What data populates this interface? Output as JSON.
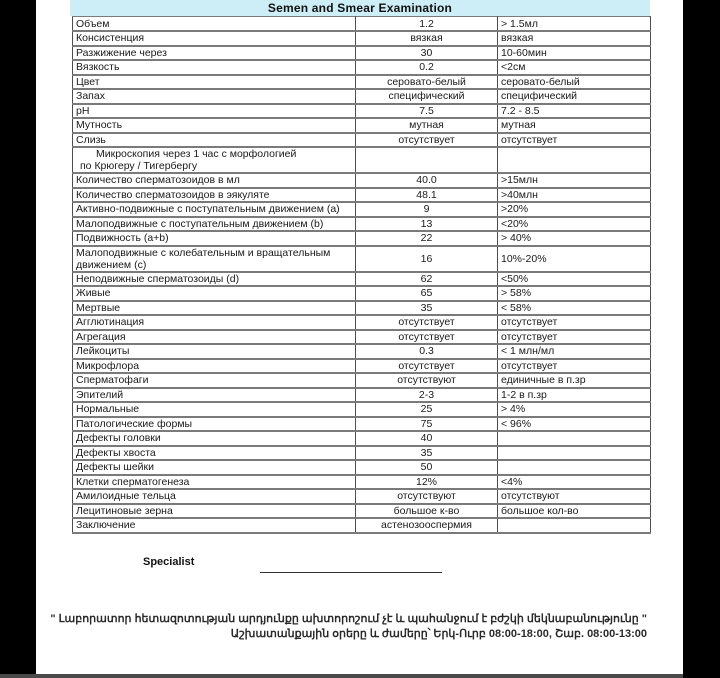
{
  "page": {
    "title": "Semen and Smear Examination",
    "specialist_label": "Specialist",
    "footer": {
      "line1": "\" Լաբորատոր հետազոտության արդյունքը ախտորոշում չէ և պահանջում է բժշկի մեկնաբանությունը \"",
      "line2": "Աշխատանքային օրերը և ժամերը՝ Երկ-Ուրբ 08:00-18:00, Շաբ. 08:00-13:00"
    },
    "colors": {
      "header_bg": "#cdeef6",
      "row_line": "#7a7a7a",
      "column_line": "#4d4d4d",
      "text": "#1a1a1a",
      "bottom_bar": "#4a4a4a"
    }
  },
  "table": {
    "rows": [
      {
        "name": "Объем",
        "value": "1.2",
        "ref": "> 1.5мл"
      },
      {
        "name": "Консистенция",
        "value": "вязкая",
        "ref": "вязкая"
      },
      {
        "name": "Разжижение через",
        "value": "30",
        "ref": "10-60мин"
      },
      {
        "name": "Вязкость",
        "value": "0.2",
        "ref": "<2см"
      },
      {
        "name": "Цвет",
        "value": "серовато-белый",
        "ref": "серовато-белый"
      },
      {
        "name": "Запах",
        "value": "специфический",
        "ref": "специфический"
      },
      {
        "name": "pH",
        "value": "7.5",
        "ref": "7.2 - 8.5"
      },
      {
        "name": "Мутность",
        "value": "мутная",
        "ref": "мутная"
      },
      {
        "name": "Слизь",
        "value": "отсутствует",
        "ref": "отсутствует"
      },
      {
        "name": [
          "Микроскопия через 1 час с морфологией",
          "по Крюгеру / Тигербергу"
        ],
        "value": "",
        "ref": "",
        "micro": true
      },
      {
        "name": "Количество сперматозоидов в мл",
        "value": "40.0",
        "ref": ">15млн"
      },
      {
        "name": "Количество сперматозоидов в эякуляте",
        "value": "48.1",
        "ref": ">40млн"
      },
      {
        "name": "Активно-подвижные с поступательным движением (a)",
        "value": "9",
        "ref": ">20%"
      },
      {
        "name": "Малоподвижные с поступательным движением (b)",
        "value": "13",
        "ref": "<20%"
      },
      {
        "name": "Подвижность (a+b)",
        "value": "22",
        "ref": "> 40%"
      },
      {
        "name": "Малоподвижные с колебательным и вращательным движением (c)",
        "value": "16",
        "ref": "10%-20%"
      },
      {
        "name": "Неподвижные сперматозоиды (d)",
        "value": "62",
        "ref": "<50%"
      },
      {
        "name": "Живые",
        "value": "65",
        "ref": "> 58%"
      },
      {
        "name": "Мертвые",
        "value": "35",
        "ref": "< 58%"
      },
      {
        "name": "Агглютинация",
        "value": "отсутствует",
        "ref": "отсутствует"
      },
      {
        "name": "Агрегация",
        "value": "отсутствует",
        "ref": "отсутствует"
      },
      {
        "name": "Лейкоциты",
        "value": "0.3",
        "ref": "< 1 млн/мл"
      },
      {
        "name": "Микрофлора",
        "value": "отсутствует",
        "ref": "отсутствует"
      },
      {
        "name": "Сперматофаги",
        "value": "отсутствуют",
        "ref": "единичные в п.зр"
      },
      {
        "name": "Эпителий",
        "value": "2-3",
        "ref": "1-2 в п.зр"
      },
      {
        "name": "Нормальные",
        "value": "25",
        "ref": "> 4%"
      },
      {
        "name": "Патологические формы",
        "value": "75",
        "ref": "< 96%"
      },
      {
        "name": "Дефекты головки",
        "value": "40",
        "ref": ""
      },
      {
        "name": "Дефекты хвоста",
        "value": "35",
        "ref": ""
      },
      {
        "name": "Дефекты шейки",
        "value": "50",
        "ref": ""
      },
      {
        "name": "Клетки сперматогенеза",
        "value": "12%",
        "ref": "<4%"
      },
      {
        "name": "Амилоидные тельца",
        "value": "отсутствуют",
        "ref": "отсутствуют"
      },
      {
        "name": "Лецитиновые зерна",
        "value": "большое к-во",
        "ref": "большое кол-во"
      },
      {
        "name": "Заключение",
        "value": "астенозооспермия",
        "ref": ""
      }
    ]
  }
}
